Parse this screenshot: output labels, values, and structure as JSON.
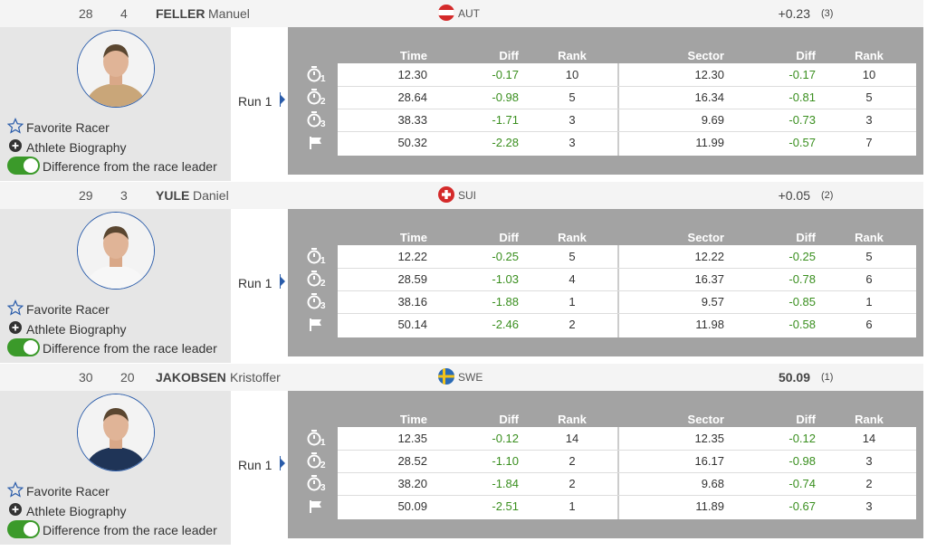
{
  "actions": [
    "Favorite Racer",
    "Athlete Biography",
    "Difference from the race leader"
  ],
  "run_label": "Run 1",
  "columns": [
    "Time",
    "Diff",
    "Rank",
    "Sector",
    "Diff",
    "Rank"
  ],
  "racers": [
    {
      "position": "28",
      "bib": "4",
      "last_name": "FELLER",
      "first_name": "Manuel",
      "nation": "AUT",
      "result": "+0.23",
      "result_rank": "(3)",
      "splits": [
        "1",
        "2",
        "3"
      ],
      "rows": [
        [
          "12.30",
          "-0.17",
          "10",
          "12.30",
          "-0.17",
          "10"
        ],
        [
          "28.64",
          "-0.98",
          "5",
          "16.34",
          "-0.81",
          "5"
        ],
        [
          "38.33",
          "-1.71",
          "3",
          "9.69",
          "-0.73",
          "3"
        ],
        [
          "50.32",
          "-2.28",
          "3",
          "11.99",
          "-0.57",
          "7"
        ]
      ]
    },
    {
      "position": "29",
      "bib": "3",
      "last_name": "YULE",
      "first_name": "Daniel",
      "nation": "SUI",
      "result": "+0.05",
      "result_rank": "(2)",
      "splits": [
        "1",
        "2",
        "3"
      ],
      "rows": [
        [
          "12.22",
          "-0.25",
          "5",
          "12.22",
          "-0.25",
          "5"
        ],
        [
          "28.59",
          "-1.03",
          "4",
          "16.37",
          "-0.78",
          "6"
        ],
        [
          "38.16",
          "-1.88",
          "1",
          "9.57",
          "-0.85",
          "1"
        ],
        [
          "50.14",
          "-2.46",
          "2",
          "11.98",
          "-0.58",
          "6"
        ]
      ]
    },
    {
      "position": "30",
      "bib": "20",
      "last_name": "JAKOBSEN",
      "first_name": "Kristoffer",
      "nation": "SWE",
      "result": "50.09",
      "result_rank": "(1)",
      "splits": [
        "1",
        "2",
        "3"
      ],
      "rows": [
        [
          "12.35",
          "-0.12",
          "14",
          "12.35",
          "-0.12",
          "14"
        ],
        [
          "28.52",
          "-1.10",
          "2",
          "16.17",
          "-0.98",
          "3"
        ],
        [
          "38.20",
          "-1.84",
          "2",
          "9.68",
          "-0.74",
          "2"
        ],
        [
          "50.09",
          "-2.51",
          "1",
          "11.89",
          "-0.67",
          "3"
        ]
      ]
    }
  ]
}
